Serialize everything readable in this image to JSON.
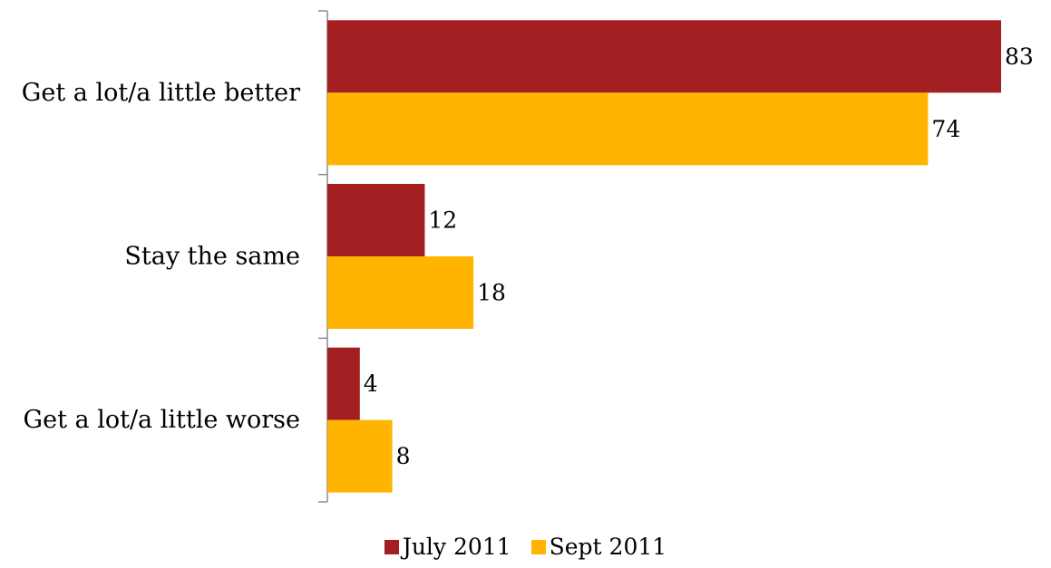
{
  "chart_data": {
    "type": "bar",
    "orientation": "horizontal",
    "categories": [
      "Get a lot/a little better",
      "Stay the same",
      "Get a lot/a little worse"
    ],
    "series": [
      {
        "name": "July 2011",
        "values": [
          83,
          12,
          4
        ],
        "color": "#a41f21"
      },
      {
        "name": "Sept 2011",
        "values": [
          74,
          18,
          8
        ],
        "color": "#ffb400"
      }
    ],
    "title": "",
    "xlabel": "",
    "ylabel": "",
    "xlim": [
      0,
      83
    ],
    "grid": false,
    "legend": "bottom"
  }
}
